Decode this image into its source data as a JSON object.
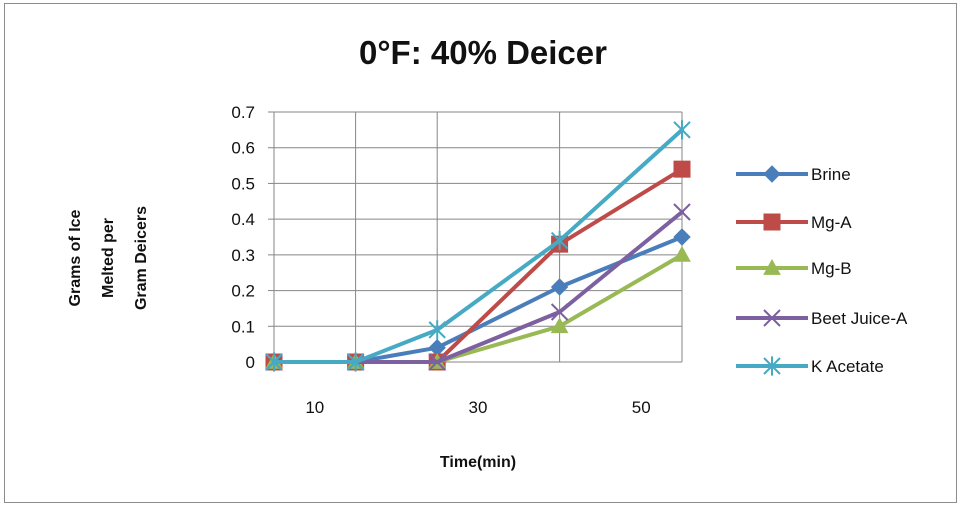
{
  "chart_data": {
    "type": "line",
    "title": "0°F: 40% Deicer",
    "xlabel": "Time(min)",
    "ylabel": [
      "Grams of Ice",
      "Melted per",
      "Gram Deicers"
    ],
    "x": [
      5,
      15,
      25,
      40,
      55
    ],
    "x_tick_values": [
      10,
      30,
      50
    ],
    "x_tick_labels": [
      "10",
      "30",
      "50"
    ],
    "xlim": [
      5,
      55
    ],
    "ylim": [
      0,
      0.7
    ],
    "y_ticks": [
      0,
      0.1,
      0.2,
      0.3,
      0.4,
      0.5,
      0.6,
      0.7
    ],
    "y_tick_labels": [
      "0",
      "0.1",
      "0.2",
      "0.3",
      "0.4",
      "0.5",
      "0.6",
      "0.7"
    ],
    "grid": true,
    "legend_position": "right",
    "series": [
      {
        "name": "Brine",
        "color": "#4a7ebb",
        "marker": "diamond",
        "values": [
          0,
          0,
          0.04,
          0.21,
          0.35
        ]
      },
      {
        "name": "Mg-A",
        "color": "#be4b48",
        "marker": "square",
        "values": [
          0,
          0,
          0,
          0.33,
          0.54
        ]
      },
      {
        "name": "Mg-B",
        "color": "#98b954",
        "marker": "triangle",
        "values": [
          0,
          0,
          0,
          0.1,
          0.3
        ]
      },
      {
        "name": "Beet Juice-A",
        "color": "#7d60a0",
        "marker": "x",
        "values": [
          0,
          0,
          0,
          0.14,
          0.42
        ]
      },
      {
        "name": "K Acetate",
        "color": "#46aac5",
        "marker": "star",
        "values": [
          0,
          0,
          0.09,
          0.34,
          0.65
        ]
      }
    ]
  }
}
